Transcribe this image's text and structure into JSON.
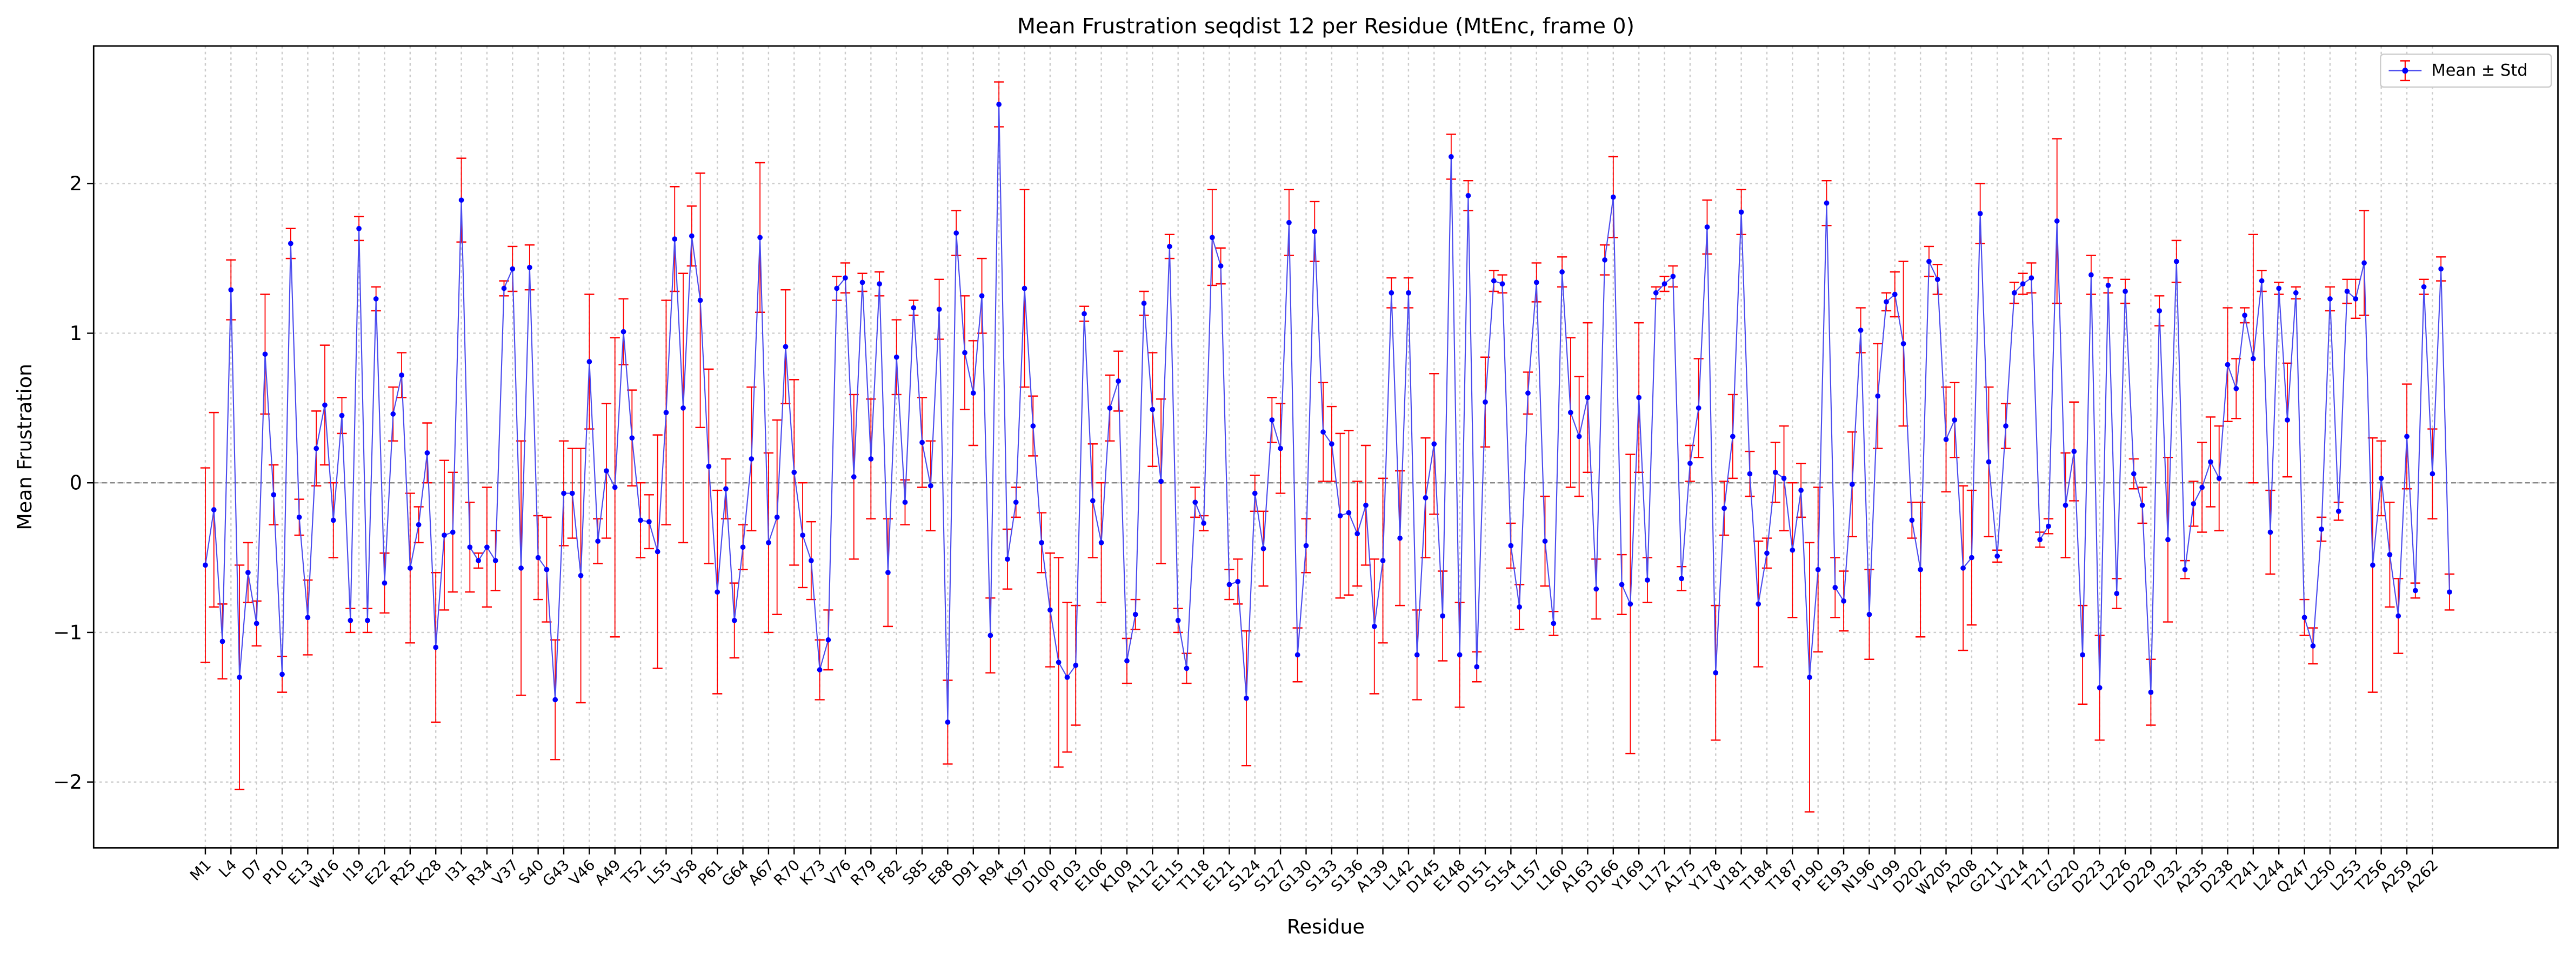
{
  "chart_data": {
    "type": "errorbar",
    "title": "Mean Frustration seqdist 12 per Residue (MtEnc, frame 0)",
    "x_label": "Residue",
    "y_label": "Mean Frustration",
    "categories": [
      "M1",
      null,
      null,
      "L4",
      null,
      null,
      "D7",
      null,
      null,
      "P10",
      null,
      null,
      "E13",
      null,
      null,
      "W16",
      null,
      null,
      "I19",
      null,
      null,
      "E22",
      null,
      null,
      "R25",
      null,
      null,
      "K28",
      null,
      null,
      "I31",
      null,
      null,
      "R34",
      null,
      null,
      "V37",
      null,
      null,
      "S40",
      null,
      null,
      "G43",
      null,
      null,
      "V46",
      null,
      null,
      "A49",
      null,
      null,
      "T52",
      null,
      null,
      "L55",
      null,
      null,
      "V58",
      null,
      null,
      "P61",
      null,
      null,
      "G64",
      null,
      null,
      "A67",
      null,
      null,
      "R70",
      null,
      null,
      "K73",
      null,
      null,
      "V76",
      null,
      null,
      "R79",
      null,
      null,
      "F82",
      null,
      null,
      "S85",
      null,
      null,
      "E88",
      null,
      null,
      "D91",
      null,
      null,
      "R94",
      null,
      null,
      "K97",
      null,
      null,
      "D100",
      null,
      null,
      "P103",
      null,
      null,
      "E106",
      null,
      null,
      "K109",
      null,
      null,
      "A112",
      null,
      null,
      "E115",
      null,
      null,
      "T118",
      null,
      null,
      "E121",
      null,
      null,
      "S124",
      null,
      null,
      "S127",
      null,
      null,
      "G130",
      null,
      null,
      "S133",
      null,
      null,
      "S136",
      null,
      null,
      "A139",
      null,
      null,
      "L142",
      null,
      null,
      "D145",
      null,
      null,
      "E148",
      null,
      null,
      "D151",
      null,
      null,
      "S154",
      null,
      null,
      "L157",
      null,
      null,
      "L160",
      null,
      null,
      "A163",
      null,
      null,
      "D166",
      null,
      null,
      "Y169",
      null,
      null,
      "L172",
      null,
      null,
      "A175",
      null,
      null,
      "Y178",
      null,
      null,
      "V181",
      null,
      null,
      "T184",
      null,
      null,
      "T187",
      null,
      null,
      "P190",
      null,
      null,
      "E193",
      null,
      null,
      "N196",
      null,
      null,
      "V199",
      null,
      null,
      "D202",
      null,
      null,
      "W205",
      null,
      null,
      "A208",
      null,
      null,
      "G211",
      null,
      null,
      "V214",
      null,
      null,
      "T217",
      null,
      null,
      "G220",
      null,
      null,
      "D223",
      null,
      null,
      "L226",
      null,
      null,
      "D229",
      null,
      null,
      "I232",
      null,
      null,
      "A235",
      null,
      null,
      "D238",
      null,
      null,
      "T241",
      null,
      null,
      "L244",
      null,
      null,
      "Q247",
      null,
      null,
      "L250",
      null,
      null,
      "L253",
      null,
      null,
      "T256",
      null,
      null,
      "A259",
      null,
      null,
      "A262",
      null,
      null
    ],
    "series": [
      {
        "name": "Mean ± Std",
        "color": "#0000ff",
        "line_color": "#4a4aee",
        "error_color": "#ff0000",
        "values": [
          -0.55,
          -0.18,
          -1.06,
          1.29,
          -1.3,
          -0.6,
          -0.94,
          0.86,
          -0.08,
          -1.28,
          1.6,
          -0.23,
          -0.9,
          0.23,
          0.52,
          -0.25,
          0.45,
          -0.92,
          1.7,
          -0.92,
          1.23,
          -0.67,
          0.46,
          0.72,
          -0.57,
          -0.28,
          0.2,
          -1.1,
          -0.35,
          -0.33,
          1.89,
          -0.43,
          -0.52,
          -0.43,
          -0.52,
          1.3,
          1.43,
          -0.57,
          1.44,
          -0.5,
          -0.58,
          -1.45,
          -0.07,
          -0.07,
          -0.62,
          0.81,
          -0.39,
          0.08,
          -0.03,
          1.01,
          0.3,
          -0.25,
          -0.26,
          -0.46,
          0.47,
          1.63,
          0.5,
          1.65,
          1.22,
          0.11,
          -0.73,
          -0.04,
          -0.92,
          -0.43,
          0.16,
          1.64,
          -0.4,
          -0.23,
          0.91,
          0.07,
          -0.35,
          -0.52,
          -1.25,
          -1.05,
          1.3,
          1.37,
          0.04,
          1.34,
          0.16,
          1.33,
          -0.6,
          0.84,
          -0.13,
          1.17,
          0.27,
          -0.02,
          1.16,
          -1.6,
          1.67,
          0.87,
          0.6,
          1.25,
          -1.02,
          2.53,
          -0.51,
          -0.13,
          1.3,
          0.38,
          -0.4,
          -0.85,
          -1.2,
          -1.3,
          -1.22,
          1.13,
          -0.12,
          -0.4,
          0.5,
          0.68,
          -1.19,
          -0.88,
          1.2,
          0.49,
          0.01,
          1.58,
          -0.92,
          -1.24,
          -0.13,
          -0.27,
          1.64,
          1.45,
          -0.68,
          -0.66,
          -1.44,
          -0.07,
          -0.44,
          0.42,
          0.23,
          1.74,
          -1.15,
          -0.42,
          1.68,
          0.34,
          0.26,
          -0.22,
          -0.2,
          -0.34,
          -0.15,
          -0.96,
          -0.52,
          1.27,
          -0.37,
          1.27,
          -1.15,
          -0.1,
          0.26,
          -0.89,
          2.18,
          -1.15,
          1.92,
          -1.23,
          0.54,
          1.35,
          1.33,
          -0.42,
          -0.83,
          0.6,
          1.34,
          -0.39,
          -0.94,
          1.41,
          0.47,
          0.31,
          0.57,
          -0.71,
          1.49,
          1.91,
          -0.68,
          -0.81,
          0.57,
          -0.65,
          1.27,
          1.33,
          1.38,
          -0.64,
          0.13,
          0.5,
          1.71,
          -1.27,
          -0.17,
          0.31,
          1.81,
          0.06,
          -0.81,
          -0.47,
          0.07,
          0.03,
          -0.45,
          -0.05,
          -1.3,
          -0.58,
          1.87,
          -0.7,
          -0.79,
          -0.01,
          1.02,
          -0.88,
          0.58,
          1.21,
          1.26,
          0.93,
          -0.25,
          -0.58,
          1.48,
          1.36,
          0.29,
          0.42,
          -0.57,
          -0.5,
          1.8,
          0.14,
          -0.49,
          0.38,
          1.27,
          1.33,
          1.37,
          -0.38,
          -0.29,
          1.75,
          -0.15,
          0.21,
          -1.15,
          1.39,
          -1.37,
          1.32,
          -0.74,
          1.28,
          0.06,
          -0.15,
          -1.4,
          1.15,
          -0.38,
          1.48,
          -0.58,
          -0.14,
          -0.03,
          0.14,
          0.03,
          0.79,
          0.63,
          1.12,
          0.83,
          1.35,
          -0.33,
          1.3,
          0.42,
          1.27,
          -0.9,
          -1.09,
          -0.31,
          1.23,
          -0.19,
          1.28,
          1.23,
          1.47,
          -0.55,
          0.03,
          -0.48,
          -0.89,
          0.31,
          -0.72,
          1.31,
          0.06,
          1.43,
          -0.73
        ],
        "errors": [
          0.65,
          0.65,
          0.25,
          0.2,
          0.75,
          0.2,
          0.15,
          0.4,
          0.2,
          0.12,
          0.1,
          0.12,
          0.25,
          0.25,
          0.4,
          0.25,
          0.12,
          0.08,
          0.08,
          0.08,
          0.08,
          0.2,
          0.18,
          0.15,
          0.5,
          0.12,
          0.2,
          0.5,
          0.5,
          0.4,
          0.28,
          0.3,
          0.05,
          0.4,
          0.2,
          0.05,
          0.15,
          0.85,
          0.15,
          0.28,
          0.35,
          0.4,
          0.35,
          0.3,
          0.85,
          0.45,
          0.15,
          0.45,
          1.0,
          0.22,
          0.32,
          0.25,
          0.18,
          0.78,
          0.75,
          0.35,
          0.9,
          0.2,
          0.85,
          0.65,
          0.68,
          0.2,
          0.25,
          0.15,
          0.48,
          0.5,
          0.6,
          0.65,
          0.38,
          0.62,
          0.35,
          0.26,
          0.2,
          0.2,
          0.08,
          0.1,
          0.55,
          0.06,
          0.4,
          0.08,
          0.36,
          0.25,
          0.15,
          0.05,
          0.3,
          0.3,
          0.2,
          0.28,
          0.15,
          0.38,
          0.35,
          0.25,
          0.25,
          0.15,
          0.2,
          0.1,
          0.66,
          0.2,
          0.2,
          0.38,
          0.7,
          0.5,
          0.4,
          0.05,
          0.38,
          0.4,
          0.22,
          0.2,
          0.15,
          0.1,
          0.08,
          0.38,
          0.55,
          0.08,
          0.08,
          0.1,
          0.1,
          0.05,
          0.32,
          0.12,
          0.1,
          0.15,
          0.45,
          0.12,
          0.25,
          0.15,
          0.3,
          0.22,
          0.18,
          0.18,
          0.2,
          0.33,
          0.25,
          0.55,
          0.55,
          0.35,
          0.4,
          0.45,
          0.55,
          0.1,
          0.45,
          0.1,
          0.3,
          0.4,
          0.47,
          0.3,
          0.15,
          0.35,
          0.1,
          0.1,
          0.3,
          0.07,
          0.06,
          0.15,
          0.15,
          0.14,
          0.13,
          0.3,
          0.08,
          0.1,
          0.5,
          0.4,
          0.5,
          0.2,
          0.1,
          0.27,
          0.2,
          1.0,
          0.5,
          0.15,
          0.04,
          0.05,
          0.07,
          0.08,
          0.12,
          0.33,
          0.18,
          0.45,
          0.18,
          0.28,
          0.15,
          0.15,
          0.42,
          0.1,
          0.2,
          0.35,
          0.45,
          0.18,
          0.9,
          0.55,
          0.15,
          0.2,
          0.2,
          0.35,
          0.15,
          0.3,
          0.35,
          0.06,
          0.15,
          0.55,
          0.12,
          0.45,
          0.1,
          0.1,
          0.35,
          0.25,
          0.55,
          0.45,
          0.2,
          0.5,
          0.04,
          0.15,
          0.07,
          0.07,
          0.1,
          0.05,
          0.05,
          0.55,
          0.35,
          0.33,
          0.33,
          0.13,
          0.35,
          0.05,
          0.1,
          0.08,
          0.1,
          0.12,
          0.22,
          0.1,
          0.55,
          0.14,
          0.06,
          0.15,
          0.3,
          0.3,
          0.35,
          0.38,
          0.2,
          0.05,
          0.83,
          0.07,
          0.28,
          0.04,
          0.38,
          0.04,
          0.12,
          0.12,
          0.08,
          0.08,
          0.06,
          0.08,
          0.13,
          0.35,
          0.85,
          0.25,
          0.35,
          0.25,
          0.35,
          0.05,
          0.05,
          0.3,
          0.08,
          0.12
        ]
      }
    ],
    "ylim": [
      -2.44,
      2.92
    ],
    "yticks": [
      {
        "value": -2,
        "label": "−2"
      },
      {
        "value": -1,
        "label": "−1"
      },
      0,
      1,
      2
    ],
    "reference_line": 0,
    "grid": true,
    "legend": "upper right"
  }
}
